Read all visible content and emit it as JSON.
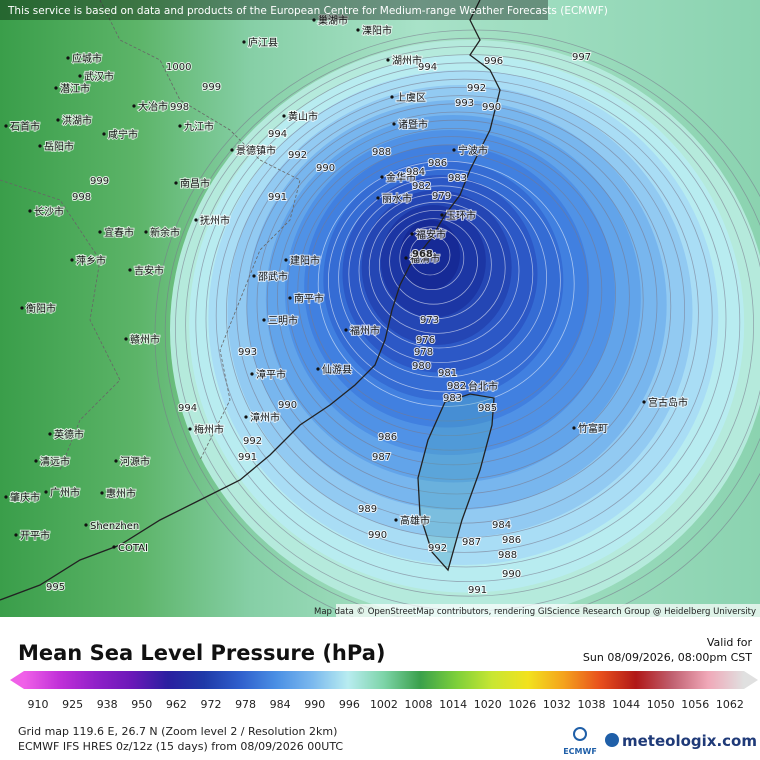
{
  "header": {
    "notice": "This service is based on data and products of the European Centre for Medium-range Weather Forecasts (ECMWF)",
    "attribution": "Map data © OpenStreetMap contributors, rendering GIScience Research Group @ Heidelberg University"
  },
  "map": {
    "cities": [
      "应城市",
      "武汉市",
      "潜江市",
      "大冶市",
      "咸宁市",
      "洪湖市",
      "石首市",
      "岳阳市",
      "九江市",
      "景德镇市",
      "黄山市",
      "庐江县",
      "巢湖市",
      "溧阳市",
      "湖州市",
      "上虞区",
      "诸暨市",
      "宁波市",
      "金华市",
      "丽水市",
      "玉环市",
      "福安市",
      "福清市",
      "建阳市",
      "邵武市",
      "南平市",
      "三明市",
      "福州市",
      "仙游县",
      "漳平市",
      "漳州市",
      "梅州市",
      "台北市",
      "高雄市",
      "宫古岛市",
      "竹富町",
      "广州市",
      "惠州市",
      "Shenzhen",
      "COTAI",
      "开平市",
      "肇庆市",
      "清远市",
      "英德市",
      "河源市",
      "赣州市",
      "吉安市",
      "抚州市",
      "南昌市",
      "新余市",
      "宜春市",
      "萍乡市",
      "长沙市",
      "衡阳市"
    ],
    "isobars": [
      997,
      996,
      994,
      993,
      992,
      990,
      999,
      998,
      1000,
      994,
      992,
      990,
      988,
      986,
      984,
      983,
      982,
      979,
      968,
      973,
      976,
      978,
      980,
      981,
      982,
      983,
      985,
      986,
      987,
      989,
      990,
      992,
      987,
      984,
      986,
      988,
      990,
      991,
      993,
      994,
      990,
      992,
      991,
      995,
      991,
      999,
      998
    ]
  },
  "legend": {
    "title": "Mean Sea Level Pressure (hPa)",
    "valid_label": "Valid for",
    "valid_time": "Sun 08/09/2026, 08:00pm CST",
    "ticks": [
      910,
      925,
      938,
      950,
      962,
      972,
      978,
      984,
      990,
      996,
      1002,
      1008,
      1014,
      1020,
      1026,
      1032,
      1038,
      1044,
      1050,
      1056,
      1062
    ],
    "colors": [
      "#f060e8",
      "#c030d8",
      "#9020c8",
      "#6a18b8",
      "#2a1fa0",
      "#1f3aa8",
      "#2f5fcc",
      "#4a8fe4",
      "#7ab8ee",
      "#b8ecf0",
      "#7dd4a8",
      "#3aa04c",
      "#7ccf3a",
      "#c8e632",
      "#f2e21e",
      "#f4a21c",
      "#e8501c",
      "#b01818",
      "#c06070",
      "#f0a8b8",
      "#e0e0e0"
    ]
  },
  "footer": {
    "grid": "Grid map 119.6 E, 26.7 N (Zoom level 2 / Resolution 2km)",
    "model": "ECMWF IFS HRES 0z/12z (15 days) from 08/09/2026 00UTC",
    "ecmwf": "ECMWF",
    "brand": "meteologix.com"
  }
}
